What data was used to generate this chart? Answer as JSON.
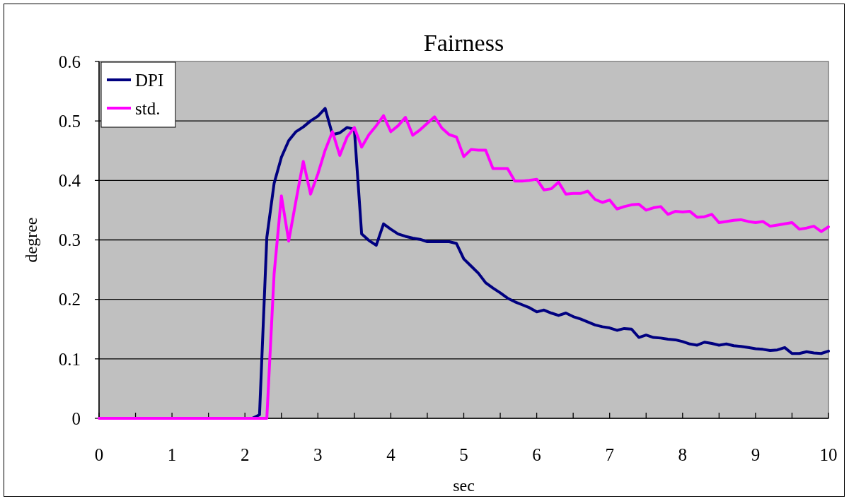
{
  "chart_data": {
    "type": "line",
    "title": "Fairness",
    "xlabel": "sec",
    "ylabel": "degree",
    "x": [
      0,
      0.1,
      0.2,
      0.3,
      0.4,
      0.5,
      0.6,
      0.7,
      0.8,
      0.9,
      1,
      1.1,
      1.2,
      1.3,
      1.4,
      1.5,
      1.6,
      1.7,
      1.8,
      1.9,
      2,
      2.1,
      2.2,
      2.3,
      2.4,
      2.5,
      2.6,
      2.7,
      2.8,
      2.9,
      3,
      3.1,
      3.2,
      3.3,
      3.4,
      3.5,
      3.6,
      3.7,
      3.8,
      3.9,
      4,
      4.1,
      4.2,
      4.3,
      4.4,
      4.5,
      4.6,
      4.7,
      4.8,
      4.9,
      5,
      5.1,
      5.2,
      5.3,
      5.4,
      5.5,
      5.6,
      5.7,
      5.8,
      5.9,
      6,
      6.1,
      6.2,
      6.3,
      6.4,
      6.5,
      6.6,
      6.7,
      6.8,
      6.9,
      7,
      7.1,
      7.2,
      7.3,
      7.4,
      7.5,
      7.6,
      7.7,
      7.8,
      7.9,
      8,
      8.1,
      8.2,
      8.3,
      8.4,
      8.5,
      8.6,
      8.7,
      8.8,
      8.9,
      9,
      9.1,
      9.2,
      9.3,
      9.4,
      9.5,
      9.6,
      9.7,
      9.8,
      9.9,
      10
    ],
    "series": [
      {
        "name": "DPI",
        "color": "#000080",
        "values": [
          null,
          null,
          null,
          null,
          null,
          null,
          null,
          null,
          null,
          null,
          null,
          null,
          null,
          null,
          null,
          null,
          null,
          null,
          null,
          null,
          0,
          0,
          0.006,
          0.304,
          0.395,
          0.439,
          0.467,
          0.482,
          0.49,
          0.5,
          0.508,
          0.521,
          0.477,
          0.48,
          0.489,
          0.486,
          0.31,
          0.299,
          0.291,
          0.327,
          0.318,
          0.31,
          0.306,
          0.303,
          0.301,
          0.297,
          0.297,
          0.297,
          0.297,
          0.294,
          0.268,
          0.256,
          0.244,
          0.228,
          0.219,
          0.211,
          0.202,
          0.196,
          0.191,
          0.186,
          0.179,
          0.182,
          0.177,
          0.173,
          0.177,
          0.171,
          0.167,
          0.162,
          0.157,
          0.154,
          0.152,
          0.148,
          0.151,
          0.15,
          0.136,
          0.14,
          0.136,
          0.135,
          0.133,
          0.132,
          0.129,
          0.125,
          0.123,
          0.128,
          0.126,
          0.123,
          0.125,
          0.122,
          0.121,
          0.119,
          0.117,
          0.116,
          0.114,
          0.115,
          0.119,
          0.109,
          0.109,
          0.112,
          0.11,
          0.109,
          0.113
        ]
      },
      {
        "name": "std.",
        "color": "#ff00ff",
        "values": [
          0,
          0,
          0,
          0,
          0,
          0,
          0,
          0,
          0,
          0,
          0,
          0,
          0,
          0,
          0,
          0,
          0,
          0,
          0,
          0,
          0,
          0,
          0,
          0,
          0.243,
          0.374,
          0.298,
          0.366,
          0.432,
          0.377,
          0.411,
          0.451,
          0.482,
          0.442,
          0.473,
          0.489,
          0.456,
          0.477,
          0.492,
          0.509,
          0.482,
          0.492,
          0.506,
          0.476,
          0.485,
          0.496,
          0.507,
          0.488,
          0.477,
          0.473,
          0.44,
          0.452,
          0.451,
          0.451,
          0.42,
          0.42,
          0.42,
          0.399,
          0.399,
          0.4,
          0.402,
          0.384,
          0.386,
          0.397,
          0.377,
          0.378,
          0.378,
          0.382,
          0.368,
          0.363,
          0.367,
          0.352,
          0.356,
          0.359,
          0.36,
          0.35,
          0.354,
          0.356,
          0.343,
          0.348,
          0.347,
          0.348,
          0.338,
          0.339,
          0.343,
          0.329,
          0.331,
          0.333,
          0.334,
          0.331,
          0.329,
          0.331,
          0.323,
          0.325,
          0.327,
          0.329,
          0.318,
          0.32,
          0.323,
          0.314,
          0.322
        ]
      }
    ],
    "xlim": [
      0,
      10
    ],
    "xticks": [
      0,
      {
        "value": 0.5,
        "label": null
      },
      1,
      {
        "value": 1.5,
        "label": null
      },
      2,
      {
        "value": 2.5,
        "label": null
      },
      3,
      {
        "value": 3.5,
        "label": null
      },
      4,
      {
        "value": 4.5,
        "label": null
      },
      5,
      {
        "value": 5.5,
        "label": null
      },
      6,
      {
        "value": 6.5,
        "label": null
      },
      7,
      {
        "value": 7.5,
        "label": null
      },
      8,
      {
        "value": 8.5,
        "label": null
      },
      9,
      {
        "value": 9.5,
        "label": null
      },
      10
    ],
    "ylim": [
      0,
      0.6
    ],
    "yticks": [
      0,
      0.1,
      0.2,
      0.3,
      0.4,
      0.5,
      0.6
    ],
    "grid": "y",
    "legend": "top left"
  }
}
